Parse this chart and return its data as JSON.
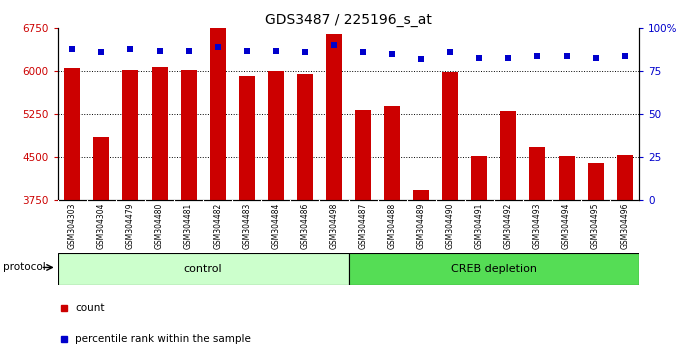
{
  "title": "GDS3487 / 225196_s_at",
  "categories": [
    "GSM304303",
    "GSM304304",
    "GSM304479",
    "GSM304480",
    "GSM304481",
    "GSM304482",
    "GSM304483",
    "GSM304484",
    "GSM304486",
    "GSM304498",
    "GSM304487",
    "GSM304488",
    "GSM304489",
    "GSM304490",
    "GSM304491",
    "GSM304492",
    "GSM304493",
    "GSM304494",
    "GSM304495",
    "GSM304496"
  ],
  "bar_values": [
    6050,
    4850,
    6020,
    6080,
    6030,
    6750,
    5920,
    6000,
    5960,
    6650,
    5330,
    5390,
    3920,
    5980,
    4520,
    5310,
    4680,
    4520,
    4390,
    4530
  ],
  "percentile_values": [
    88,
    86,
    88,
    87,
    87,
    89,
    87,
    87,
    86,
    90,
    86,
    85,
    82,
    86,
    83,
    83,
    84,
    84,
    83,
    84
  ],
  "bar_color": "#cc0000",
  "percentile_color": "#0000cc",
  "ylim_left": [
    3750,
    6750
  ],
  "yticks_left": [
    3750,
    4500,
    5250,
    6000,
    6750
  ],
  "ylim_right": [
    0,
    100
  ],
  "yticks_right": [
    0,
    25,
    50,
    75,
    100
  ],
  "ytick_labels_right": [
    "0",
    "25",
    "50",
    "75",
    "100%"
  ],
  "grid_lines": [
    6000,
    5250,
    4500
  ],
  "control_count": 10,
  "control_label": "control",
  "treatment_label": "CREB depletion",
  "control_color": "#ccffcc",
  "treatment_color": "#55dd55",
  "protocol_label": "protocol",
  "legend_count_label": "count",
  "legend_pct_label": "percentile rank within the sample",
  "bg_color": "#ffffff",
  "tick_label_area_color": "#cccccc",
  "title_fontsize": 10,
  "axis_fontsize": 7.5,
  "bar_width": 0.55
}
